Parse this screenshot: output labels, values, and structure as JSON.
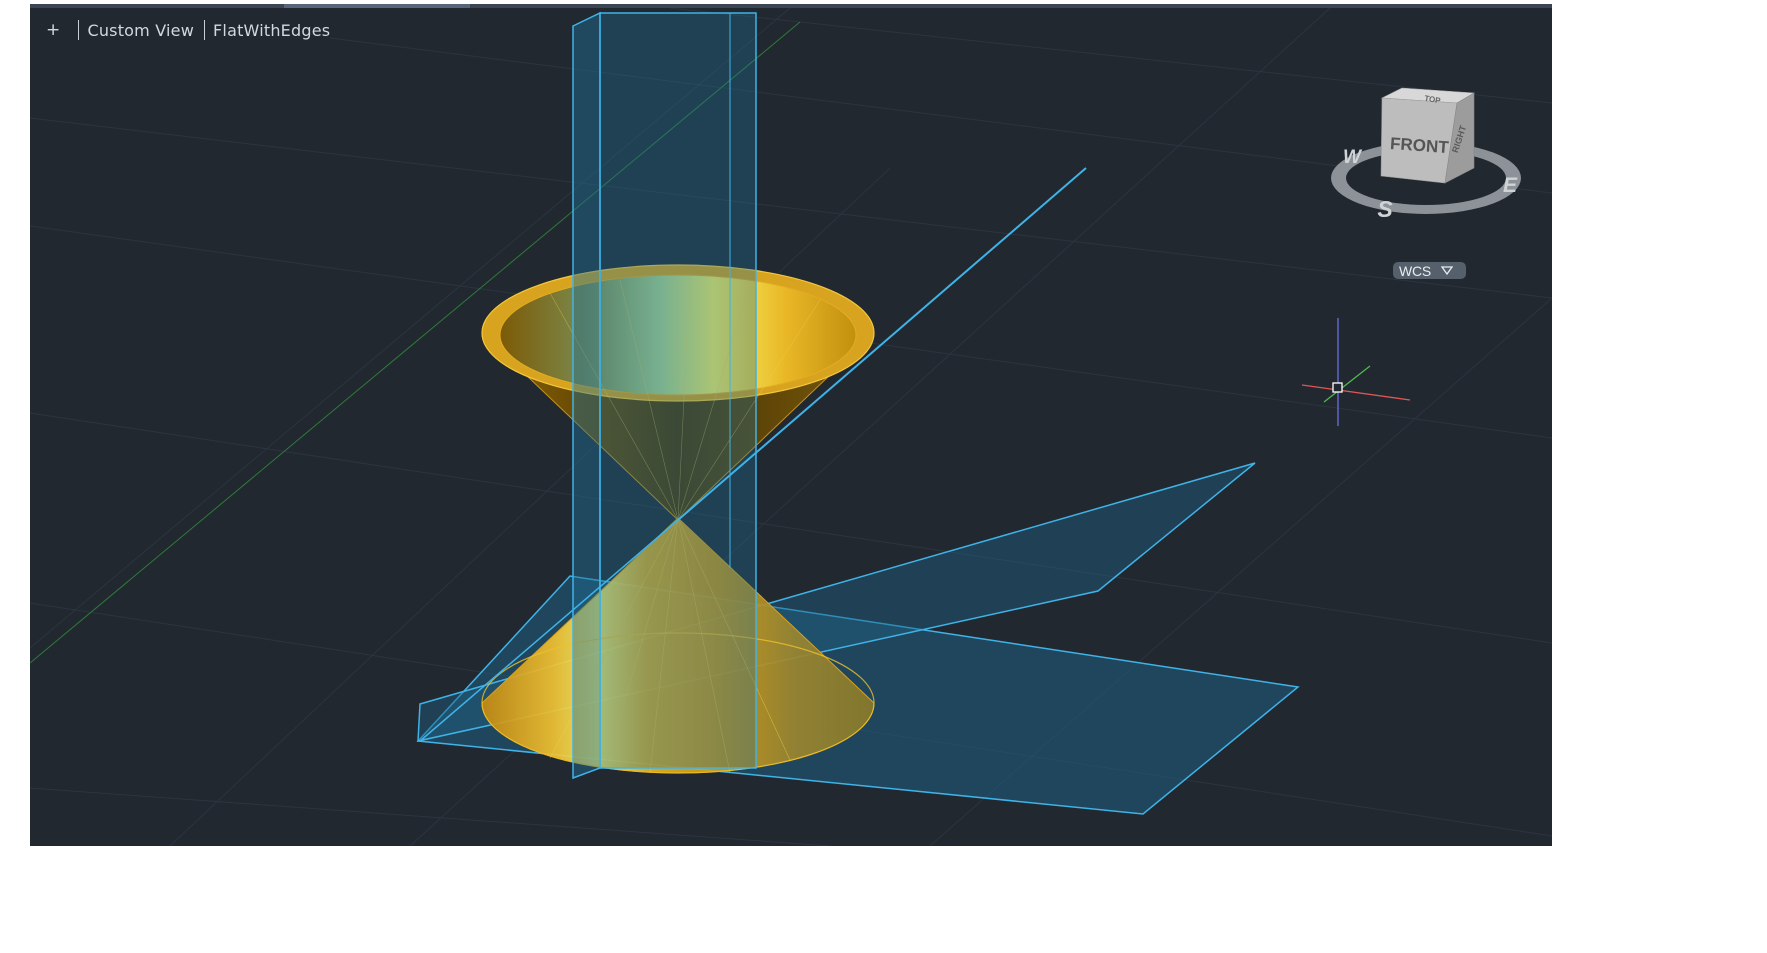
{
  "viewport": {
    "plus_label": "+",
    "view_label": "Custom View",
    "visual_style_label": "FlatWithEdges",
    "background_color": "#212830"
  },
  "viewcube": {
    "face_front": "FRONT",
    "face_top": "TOP",
    "face_right": "RIGHT",
    "compass_w": "W",
    "compass_s": "S",
    "compass_e": "E"
  },
  "wcs_menu": {
    "label": "WCS"
  },
  "colors": {
    "cone_gold": "#e2a91c",
    "cone_highlight": "#f7f05a",
    "plane_cyan": "#3fb3e8",
    "plane_fill": "#1f5f82",
    "grid_line": "#2c3440",
    "axis_x": "#e05555",
    "axis_y": "#4fb84f",
    "axis_z": "#6b6fe0"
  },
  "icons": {
    "ucs": "ucs-icon",
    "viewcube": "viewcube-icon",
    "wcs_dropdown": "chevron-down-icon"
  }
}
